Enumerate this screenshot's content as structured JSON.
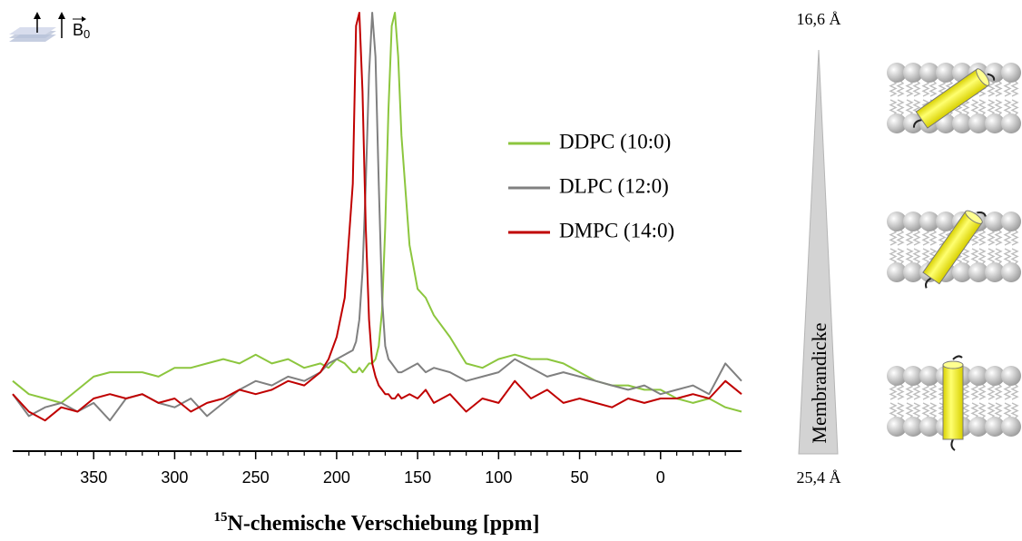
{
  "chart_data": {
    "type": "line",
    "xlabel_superscript": "15",
    "xlabel": "N-chemische Verschiebung [ppm]",
    "field_label": "B",
    "field_label_subscript": "0",
    "xlim": [
      400,
      -50
    ],
    "xticks": [
      350,
      300,
      250,
      200,
      150,
      100,
      50,
      0
    ],
    "xminorticks": [
      390,
      380,
      370,
      360,
      340,
      330,
      320,
      310,
      290,
      280,
      270,
      260,
      240,
      230,
      220,
      210,
      190,
      180,
      170,
      160,
      140,
      130,
      120,
      110,
      90,
      80,
      70,
      60,
      40,
      30,
      20,
      10,
      -10,
      -20,
      -30,
      -40
    ],
    "ylim": [
      0,
      100
    ],
    "x": [
      400,
      390,
      380,
      370,
      360,
      350,
      340,
      330,
      320,
      310,
      300,
      290,
      280,
      270,
      260,
      250,
      240,
      230,
      220,
      210,
      205,
      200,
      195,
      190,
      188,
      186,
      184,
      182,
      180,
      178,
      176,
      174,
      172,
      170,
      168,
      166,
      164,
      162,
      160,
      155,
      150,
      145,
      140,
      130,
      120,
      110,
      100,
      90,
      80,
      70,
      60,
      50,
      40,
      30,
      20,
      10,
      0,
      -10,
      -20,
      -30,
      -40,
      -50
    ],
    "series": [
      {
        "name": "DDPC (10:0)",
        "color": "#8cc63e",
        "values": [
          16,
          13,
          12,
          11,
          14,
          17,
          18,
          18,
          18,
          17,
          19,
          19,
          20,
          21,
          20,
          22,
          20,
          21,
          19,
          20,
          19,
          21,
          20,
          18,
          18,
          19,
          18,
          19,
          20,
          20,
          21,
          24,
          32,
          51,
          78,
          97,
          100,
          90,
          72,
          47,
          37,
          35,
          31,
          26,
          20,
          19,
          21,
          22,
          21,
          21,
          20,
          18,
          16,
          15,
          15,
          14,
          14,
          12,
          11,
          12,
          10,
          9
        ]
      },
      {
        "name": "DLPC (12:0)",
        "color": "#808080",
        "values": [
          13,
          8,
          10,
          11,
          9,
          11,
          7,
          12,
          13,
          11,
          10,
          12,
          8,
          11,
          14,
          16,
          15,
          17,
          16,
          18,
          20,
          21,
          22,
          23,
          25,
          30,
          41,
          61,
          86,
          100,
          90,
          61,
          35,
          24,
          21,
          20,
          19,
          18,
          18,
          19,
          20,
          18,
          19,
          18,
          16,
          17,
          18,
          21,
          19,
          17,
          18,
          17,
          16,
          15,
          14,
          15,
          13,
          14,
          15,
          13,
          20,
          16
        ]
      },
      {
        "name": "DMPC (14:0)",
        "color": "#c00000",
        "values": [
          13,
          9,
          7,
          10,
          9,
          12,
          13,
          12,
          13,
          11,
          12,
          9,
          11,
          12,
          14,
          13,
          14,
          16,
          15,
          18,
          21,
          26,
          35,
          61,
          97,
          100,
          82,
          51,
          30,
          20,
          17,
          15,
          14,
          13,
          13,
          12,
          12,
          13,
          12,
          13,
          12,
          14,
          11,
          13,
          9,
          12,
          11,
          16,
          12,
          14,
          11,
          12,
          11,
          10,
          12,
          11,
          12,
          12,
          13,
          12,
          16,
          13
        ]
      }
    ]
  },
  "diagram": {
    "top_label": "16,6 Å",
    "bottom_label": "25,4 Å",
    "axis_label": "Membrandicke"
  }
}
